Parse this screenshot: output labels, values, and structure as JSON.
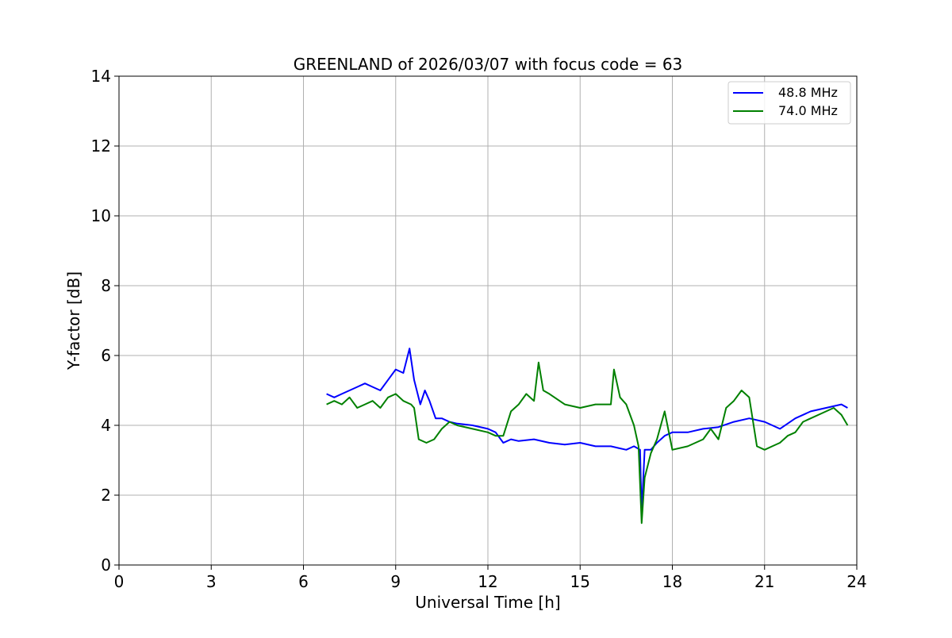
{
  "chart_data": {
    "type": "line",
    "title": "GREENLAND of 2026/03/07 with focus code = 63",
    "xlabel": "Universal Time [h]",
    "ylabel": "Y-factor [dB]",
    "xlim": [
      0,
      24
    ],
    "ylim": [
      0,
      14
    ],
    "xticks": [
      0,
      3,
      6,
      9,
      12,
      15,
      18,
      21,
      24
    ],
    "yticks": [
      0,
      2,
      4,
      6,
      8,
      10,
      12,
      14
    ],
    "grid": true,
    "legend_position": "top-right",
    "series": [
      {
        "name": "48.8 MHz",
        "color": "#0000ff",
        "points": [
          [
            6.75,
            4.9
          ],
          [
            7.0,
            4.8
          ],
          [
            7.25,
            4.9
          ],
          [
            7.5,
            5.0
          ],
          [
            7.75,
            5.1
          ],
          [
            8.0,
            5.2
          ],
          [
            8.25,
            5.1
          ],
          [
            8.5,
            5.0
          ],
          [
            8.75,
            5.3
          ],
          [
            9.0,
            5.6
          ],
          [
            9.25,
            5.5
          ],
          [
            9.45,
            6.2
          ],
          [
            9.6,
            5.3
          ],
          [
            9.8,
            4.6
          ],
          [
            9.95,
            5.0
          ],
          [
            10.1,
            4.7
          ],
          [
            10.3,
            4.2
          ],
          [
            10.5,
            4.2
          ],
          [
            10.75,
            4.1
          ],
          [
            11.0,
            4.05
          ],
          [
            11.5,
            4.0
          ],
          [
            12.0,
            3.9
          ],
          [
            12.25,
            3.8
          ],
          [
            12.5,
            3.5
          ],
          [
            12.75,
            3.6
          ],
          [
            13.0,
            3.55
          ],
          [
            13.5,
            3.6
          ],
          [
            14.0,
            3.5
          ],
          [
            14.5,
            3.45
          ],
          [
            15.0,
            3.5
          ],
          [
            15.5,
            3.4
          ],
          [
            16.0,
            3.4
          ],
          [
            16.25,
            3.35
          ],
          [
            16.5,
            3.3
          ],
          [
            16.75,
            3.4
          ],
          [
            16.95,
            3.3
          ],
          [
            17.0,
            1.5
          ],
          [
            17.1,
            3.3
          ],
          [
            17.3,
            3.3
          ],
          [
            17.5,
            3.5
          ],
          [
            17.75,
            3.7
          ],
          [
            18.0,
            3.8
          ],
          [
            18.5,
            3.8
          ],
          [
            19.0,
            3.9
          ],
          [
            19.5,
            3.95
          ],
          [
            20.0,
            4.1
          ],
          [
            20.5,
            4.2
          ],
          [
            21.0,
            4.1
          ],
          [
            21.5,
            3.9
          ],
          [
            22.0,
            4.2
          ],
          [
            22.5,
            4.4
          ],
          [
            23.0,
            4.5
          ],
          [
            23.5,
            4.6
          ],
          [
            23.7,
            4.5
          ]
        ]
      },
      {
        "name": "74.0 MHz",
        "color": "#008000",
        "points": [
          [
            6.75,
            4.6
          ],
          [
            7.0,
            4.7
          ],
          [
            7.25,
            4.6
          ],
          [
            7.5,
            4.8
          ],
          [
            7.75,
            4.5
          ],
          [
            8.0,
            4.6
          ],
          [
            8.25,
            4.7
          ],
          [
            8.5,
            4.5
          ],
          [
            8.75,
            4.8
          ],
          [
            9.0,
            4.9
          ],
          [
            9.25,
            4.7
          ],
          [
            9.5,
            4.6
          ],
          [
            9.6,
            4.5
          ],
          [
            9.75,
            3.6
          ],
          [
            10.0,
            3.5
          ],
          [
            10.25,
            3.6
          ],
          [
            10.5,
            3.9
          ],
          [
            10.75,
            4.1
          ],
          [
            11.0,
            4.0
          ],
          [
            11.5,
            3.9
          ],
          [
            12.0,
            3.8
          ],
          [
            12.25,
            3.7
          ],
          [
            12.5,
            3.7
          ],
          [
            12.75,
            4.4
          ],
          [
            13.0,
            4.6
          ],
          [
            13.25,
            4.9
          ],
          [
            13.5,
            4.7
          ],
          [
            13.65,
            5.8
          ],
          [
            13.8,
            5.0
          ],
          [
            14.0,
            4.9
          ],
          [
            14.5,
            4.6
          ],
          [
            15.0,
            4.5
          ],
          [
            15.5,
            4.6
          ],
          [
            16.0,
            4.6
          ],
          [
            16.1,
            5.6
          ],
          [
            16.3,
            4.8
          ],
          [
            16.5,
            4.6
          ],
          [
            16.75,
            4.0
          ],
          [
            16.9,
            3.4
          ],
          [
            17.0,
            1.2
          ],
          [
            17.1,
            2.5
          ],
          [
            17.3,
            3.2
          ],
          [
            17.5,
            3.6
          ],
          [
            17.75,
            4.4
          ],
          [
            18.0,
            3.3
          ],
          [
            18.5,
            3.4
          ],
          [
            19.0,
            3.6
          ],
          [
            19.25,
            3.9
          ],
          [
            19.5,
            3.6
          ],
          [
            19.75,
            4.5
          ],
          [
            20.0,
            4.7
          ],
          [
            20.25,
            5.0
          ],
          [
            20.5,
            4.8
          ],
          [
            20.75,
            3.4
          ],
          [
            21.0,
            3.3
          ],
          [
            21.25,
            3.4
          ],
          [
            21.5,
            3.5
          ],
          [
            21.75,
            3.7
          ],
          [
            22.0,
            3.8
          ],
          [
            22.25,
            4.1
          ],
          [
            22.5,
            4.2
          ],
          [
            23.0,
            4.4
          ],
          [
            23.25,
            4.5
          ],
          [
            23.5,
            4.3
          ],
          [
            23.7,
            4.0
          ]
        ]
      }
    ]
  }
}
